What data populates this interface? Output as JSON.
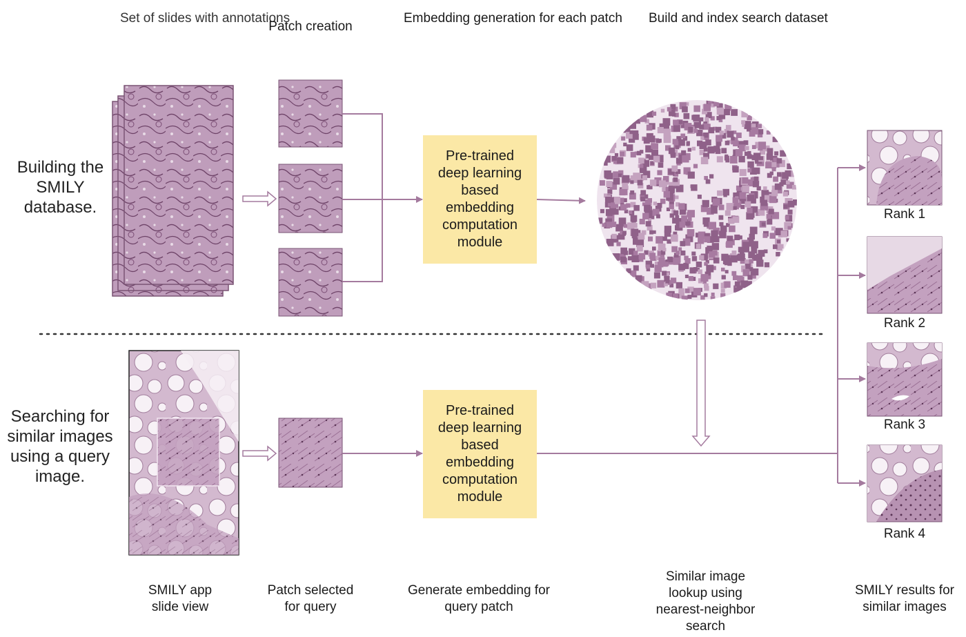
{
  "columns": {
    "slides": "Set of slides with\nannotations",
    "patch_creation": "Patch creation",
    "embedding": "Embedding generation\nfor each patch",
    "index": "Build and index\nsearch dataset"
  },
  "sections": {
    "building": "Building the\nSMILY\ndatabase.",
    "searching": "Searching for\nsimilar images\nusing a query\nimage."
  },
  "module_box": {
    "top": "Pre-trained\ndeep learning\nbased\nembedding\ncomputation\nmodule",
    "bottom": "Pre-trained\ndeep learning\nbased\nembedding\ncomputation\nmodule"
  },
  "bottom_labels": {
    "app": "SMILY app\nslide view",
    "patch_selected": "Patch selected\nfor query",
    "generate": "Generate embedding for\nquery patch",
    "lookup": "Similar image\nlookup using\nnearest-neighbor\nsearch",
    "results": "SMILY results for\nsimilar images"
  },
  "ranks": [
    "Rank 1",
    "Rank 2",
    "Rank 3",
    "Rank 4"
  ],
  "colors": {
    "tissue": "#b58fb0",
    "tissue_light": "#cdb2c9",
    "line": "#a47a9e",
    "box": "#fbe8a6"
  }
}
